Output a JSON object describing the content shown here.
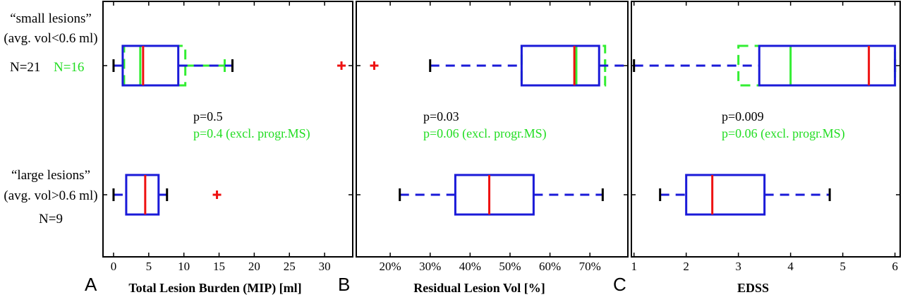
{
  "row_labels": {
    "small": {
      "title": "“small lesions”",
      "sub": "(avg. vol<0.6 ml)",
      "n_all": "N=21",
      "n_excl": "N=16"
    },
    "large": {
      "title": "“large lesions”",
      "sub": "(avg. vol>0.6 ml)",
      "n_all": "N=9"
    }
  },
  "colors": {
    "frame": "#000000",
    "box_all": "#1a1ad8",
    "box_excl": "#33ee33",
    "median": "#ee1111",
    "outlier": "#ee1111",
    "pval_all": "#000000",
    "pval_excl": "#22dd22"
  },
  "chart_data": [
    {
      "panel_letter": "A",
      "type": "box",
      "xlabel": "Total Lesion Burden (MIP) [ml]",
      "xlim": [
        -1.5,
        34
      ],
      "ticks": [
        0,
        5,
        10,
        15,
        20,
        25,
        30
      ],
      "tick_labels": [
        "0",
        "5",
        "10",
        "15",
        "20",
        "25",
        "30"
      ],
      "pvals": [
        "p=0.5",
        "p=0.4 (excl. progr.MS)"
      ],
      "groups": {
        "small_all": {
          "whisker_low": 0,
          "q1": 1.3,
          "median": 4.2,
          "q3": 9.2,
          "whisker_high": 16.9,
          "outliers": [
            32.4
          ]
        },
        "small_excl": {
          "whisker_low": 1.5,
          "q1": 1.5,
          "median": 3.8,
          "q3": 10.2,
          "whisker_high": 15.8,
          "outliers": []
        },
        "large_all": {
          "whisker_low": 0,
          "q1": 1.8,
          "median": 4.5,
          "q3": 6.4,
          "whisker_high": 7.6,
          "outliers": [
            14.7
          ]
        }
      }
    },
    {
      "panel_letter": "B",
      "type": "box",
      "xlabel": "Residual Lesion Vol  [%]",
      "xlim": [
        11.5,
        79.5
      ],
      "ticks": [
        20,
        30,
        40,
        50,
        60,
        70
      ],
      "tick_labels": [
        "20%",
        "30%",
        "40%",
        "50%",
        "60%",
        "70%"
      ],
      "pvals": [
        "p=0.03",
        "p=0.06 (excl. progr.MS)"
      ],
      "groups": {
        "small_all": {
          "whisker_low": 30,
          "q1": 52.9,
          "median": 66.1,
          "q3": 72.3,
          "whisker_high": 80,
          "outliers": [
            16
          ]
        },
        "small_excl": {
          "whisker_low": 52.9,
          "q1": 52.9,
          "median": 66.6,
          "q3": 73.8,
          "whisker_high": 73.8,
          "outliers": []
        },
        "large_all": {
          "whisker_low": 22.4,
          "q1": 36.3,
          "median": 44.8,
          "q3": 55.9,
          "whisker_high": 73.2,
          "outliers": []
        }
      }
    },
    {
      "panel_letter": "C",
      "type": "box",
      "xlabel": "EDSS",
      "xlim": [
        0.95,
        6.1
      ],
      "ticks": [
        1,
        2,
        3,
        4,
        5,
        6
      ],
      "tick_labels": [
        "1",
        "2",
        "3",
        "4",
        "5",
        "6"
      ],
      "pvals": [
        "p=0.009",
        "p=0.06 (excl. progr.MS)"
      ],
      "groups": {
        "small_all": {
          "whisker_low": 1,
          "q1": 3.4,
          "median": 5.5,
          "q3": 6,
          "whisker_high": 6,
          "outliers": []
        },
        "small_excl": {
          "whisker_low": 3,
          "q1": 3,
          "median": 4,
          "q3": 6,
          "whisker_high": 6,
          "outliers": []
        },
        "large_all": {
          "whisker_low": 1.5,
          "q1": 2,
          "median": 2.5,
          "q3": 3.5,
          "whisker_high": 4.75,
          "outliers": []
        }
      }
    }
  ]
}
